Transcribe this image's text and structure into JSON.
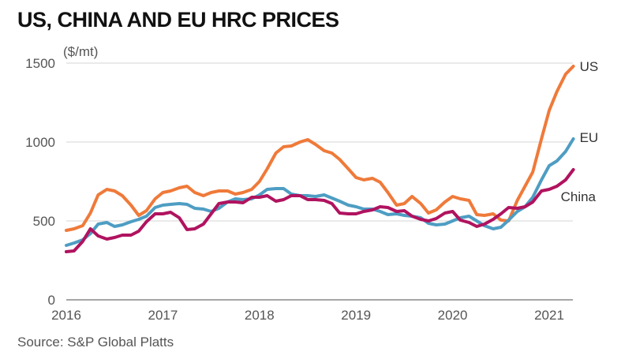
{
  "chart_data": {
    "type": "line",
    "title": "US, CHINA AND EU HRC PRICES",
    "ylabel": "($/mt)",
    "source": "Source: S&P Global Platts",
    "ylim": [
      0,
      1500
    ],
    "xlim": [
      2016,
      2021.3
    ],
    "y_ticks": [
      "0",
      "500",
      "1000",
      "1500"
    ],
    "x_ticks": [
      "2016",
      "2017",
      "2018",
      "2019",
      "2020",
      "2021"
    ],
    "grid": true,
    "legend": "line-end labels",
    "series": [
      {
        "name": "US",
        "color": "#ef7a3a",
        "points": [
          [
            2016.0,
            440
          ],
          [
            2016.08,
            450
          ],
          [
            2016.17,
            470
          ],
          [
            2016.25,
            550
          ],
          [
            2016.33,
            665
          ],
          [
            2016.42,
            700
          ],
          [
            2016.5,
            690
          ],
          [
            2016.58,
            660
          ],
          [
            2016.67,
            600
          ],
          [
            2016.75,
            535
          ],
          [
            2016.83,
            565
          ],
          [
            2016.92,
            640
          ],
          [
            2017.0,
            680
          ],
          [
            2017.08,
            690
          ],
          [
            2017.17,
            710
          ],
          [
            2017.25,
            720
          ],
          [
            2017.33,
            680
          ],
          [
            2017.42,
            660
          ],
          [
            2017.5,
            680
          ],
          [
            2017.58,
            690
          ],
          [
            2017.67,
            690
          ],
          [
            2017.75,
            670
          ],
          [
            2017.83,
            680
          ],
          [
            2017.92,
            700
          ],
          [
            2018.0,
            750
          ],
          [
            2018.08,
            830
          ],
          [
            2018.17,
            930
          ],
          [
            2018.25,
            970
          ],
          [
            2018.33,
            975
          ],
          [
            2018.42,
            1000
          ],
          [
            2018.5,
            1015
          ],
          [
            2018.58,
            985
          ],
          [
            2018.67,
            945
          ],
          [
            2018.75,
            930
          ],
          [
            2018.83,
            890
          ],
          [
            2018.92,
            830
          ],
          [
            2019.0,
            775
          ],
          [
            2019.08,
            760
          ],
          [
            2019.17,
            770
          ],
          [
            2019.25,
            745
          ],
          [
            2019.33,
            680
          ],
          [
            2019.42,
            600
          ],
          [
            2019.5,
            610
          ],
          [
            2019.58,
            655
          ],
          [
            2019.67,
            610
          ],
          [
            2019.75,
            550
          ],
          [
            2019.83,
            570
          ],
          [
            2019.92,
            620
          ],
          [
            2020.0,
            655
          ],
          [
            2020.08,
            640
          ],
          [
            2020.17,
            630
          ],
          [
            2020.25,
            540
          ],
          [
            2020.33,
            535
          ],
          [
            2020.42,
            545
          ],
          [
            2020.5,
            505
          ],
          [
            2020.58,
            500
          ],
          [
            2020.67,
            630
          ],
          [
            2020.75,
            720
          ],
          [
            2020.83,
            810
          ],
          [
            2020.92,
            1020
          ],
          [
            2021.0,
            1200
          ],
          [
            2021.08,
            1320
          ],
          [
            2021.17,
            1430
          ],
          [
            2021.25,
            1480
          ]
        ]
      },
      {
        "name": "EU",
        "color": "#4e9dc3",
        "points": [
          [
            2016.0,
            345
          ],
          [
            2016.08,
            360
          ],
          [
            2016.17,
            380
          ],
          [
            2016.25,
            420
          ],
          [
            2016.33,
            480
          ],
          [
            2016.42,
            490
          ],
          [
            2016.5,
            465
          ],
          [
            2016.58,
            475
          ],
          [
            2016.67,
            495
          ],
          [
            2016.75,
            510
          ],
          [
            2016.83,
            530
          ],
          [
            2016.92,
            585
          ],
          [
            2017.0,
            600
          ],
          [
            2017.08,
            605
          ],
          [
            2017.17,
            610
          ],
          [
            2017.25,
            605
          ],
          [
            2017.33,
            580
          ],
          [
            2017.42,
            575
          ],
          [
            2017.5,
            560
          ],
          [
            2017.58,
            580
          ],
          [
            2017.67,
            620
          ],
          [
            2017.75,
            640
          ],
          [
            2017.83,
            635
          ],
          [
            2017.92,
            640
          ],
          [
            2018.0,
            665
          ],
          [
            2018.08,
            700
          ],
          [
            2018.17,
            705
          ],
          [
            2018.25,
            705
          ],
          [
            2018.33,
            670
          ],
          [
            2018.42,
            660
          ],
          [
            2018.5,
            660
          ],
          [
            2018.58,
            655
          ],
          [
            2018.67,
            665
          ],
          [
            2018.75,
            645
          ],
          [
            2018.83,
            625
          ],
          [
            2018.92,
            600
          ],
          [
            2019.0,
            590
          ],
          [
            2019.08,
            575
          ],
          [
            2019.17,
            575
          ],
          [
            2019.25,
            560
          ],
          [
            2019.33,
            540
          ],
          [
            2019.42,
            545
          ],
          [
            2019.5,
            535
          ],
          [
            2019.58,
            530
          ],
          [
            2019.67,
            520
          ],
          [
            2019.75,
            485
          ],
          [
            2019.83,
            475
          ],
          [
            2019.92,
            480
          ],
          [
            2020.0,
            500
          ],
          [
            2020.08,
            520
          ],
          [
            2020.17,
            530
          ],
          [
            2020.25,
            500
          ],
          [
            2020.33,
            470
          ],
          [
            2020.42,
            450
          ],
          [
            2020.5,
            460
          ],
          [
            2020.58,
            505
          ],
          [
            2020.67,
            560
          ],
          [
            2020.75,
            590
          ],
          [
            2020.83,
            650
          ],
          [
            2020.92,
            760
          ],
          [
            2021.0,
            850
          ],
          [
            2021.08,
            880
          ],
          [
            2021.17,
            940
          ],
          [
            2021.25,
            1020
          ]
        ]
      },
      {
        "name": "China",
        "color": "#b0135f",
        "points": [
          [
            2016.0,
            305
          ],
          [
            2016.08,
            310
          ],
          [
            2016.17,
            370
          ],
          [
            2016.25,
            450
          ],
          [
            2016.33,
            405
          ],
          [
            2016.42,
            385
          ],
          [
            2016.5,
            395
          ],
          [
            2016.58,
            410
          ],
          [
            2016.67,
            410
          ],
          [
            2016.75,
            435
          ],
          [
            2016.83,
            495
          ],
          [
            2016.92,
            545
          ],
          [
            2017.0,
            545
          ],
          [
            2017.08,
            555
          ],
          [
            2017.17,
            520
          ],
          [
            2017.25,
            445
          ],
          [
            2017.33,
            450
          ],
          [
            2017.42,
            480
          ],
          [
            2017.5,
            545
          ],
          [
            2017.58,
            610
          ],
          [
            2017.67,
            620
          ],
          [
            2017.75,
            620
          ],
          [
            2017.83,
            615
          ],
          [
            2017.92,
            650
          ],
          [
            2018.0,
            650
          ],
          [
            2018.08,
            660
          ],
          [
            2018.17,
            625
          ],
          [
            2018.25,
            635
          ],
          [
            2018.33,
            660
          ],
          [
            2018.42,
            660
          ],
          [
            2018.5,
            635
          ],
          [
            2018.58,
            635
          ],
          [
            2018.67,
            630
          ],
          [
            2018.75,
            610
          ],
          [
            2018.83,
            550
          ],
          [
            2018.92,
            545
          ],
          [
            2019.0,
            545
          ],
          [
            2019.08,
            560
          ],
          [
            2019.17,
            570
          ],
          [
            2019.25,
            590
          ],
          [
            2019.33,
            585
          ],
          [
            2019.42,
            560
          ],
          [
            2019.5,
            565
          ],
          [
            2019.58,
            530
          ],
          [
            2019.67,
            510
          ],
          [
            2019.75,
            500
          ],
          [
            2019.83,
            515
          ],
          [
            2019.92,
            550
          ],
          [
            2020.0,
            560
          ],
          [
            2020.08,
            505
          ],
          [
            2020.17,
            490
          ],
          [
            2020.25,
            465
          ],
          [
            2020.33,
            480
          ],
          [
            2020.42,
            510
          ],
          [
            2020.5,
            545
          ],
          [
            2020.58,
            585
          ],
          [
            2020.67,
            580
          ],
          [
            2020.75,
            590
          ],
          [
            2020.83,
            620
          ],
          [
            2020.92,
            690
          ],
          [
            2021.0,
            700
          ],
          [
            2021.08,
            720
          ],
          [
            2021.17,
            760
          ],
          [
            2021.25,
            825
          ]
        ]
      }
    ]
  }
}
